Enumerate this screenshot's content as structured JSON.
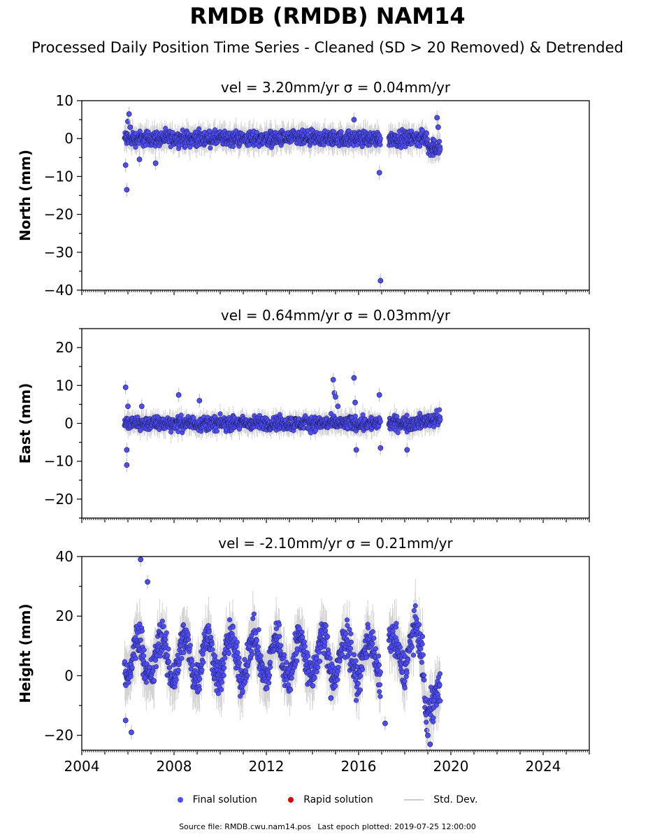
{
  "title": "RMDB (RMDB) NAM14",
  "subtitle": "Processed Daily Position Time Series - Cleaned (SD > 20 Removed) & Detrended",
  "colors": {
    "final": "#4d4dff",
    "rapid": "#e00000",
    "std": "#c8c8c8"
  },
  "chart_data": [
    {
      "type": "scatter",
      "title": "vel = 3.20mm/yr   σ = 0.04mm/yr",
      "xlabel": "",
      "ylabel": "North (mm)",
      "xlim": [
        2004,
        2026
      ],
      "ylim": [
        -40,
        10
      ],
      "yticks": [
        10,
        0,
        -10,
        -20,
        -30,
        -40
      ],
      "ytick_labels": [
        "10",
        "0",
        "−10",
        "−20",
        "−30",
        "−40"
      ],
      "series": [
        {
          "name": "Final solution",
          "x": [
            2005.9,
            2005.95,
            2006.0,
            2006.05,
            2006.1,
            2006.5,
            2007.2,
            2016.9,
            2016.95,
            2015.8,
            2019.4,
            2019.45
          ],
          "y": [
            -7,
            -13.5,
            4.5,
            6.5,
            3,
            -5.5,
            -6.5,
            -9,
            -37.5,
            5,
            5.5,
            3
          ]
        }
      ],
      "grid": false
    },
    {
      "type": "scatter",
      "title": "vel = 0.64mm/yr   σ = 0.03mm/yr",
      "xlabel": "",
      "ylabel": "East (mm)",
      "xlim": [
        2004,
        2026
      ],
      "ylim": [
        -25,
        25
      ],
      "yticks": [
        20,
        10,
        0,
        -10,
        -20
      ],
      "ytick_labels": [
        "20",
        "10",
        "0",
        "−10",
        "−20"
      ],
      "series": [
        {
          "name": "Final solution",
          "x": [
            2005.9,
            2005.95,
            2005.95,
            2006.0,
            2006.6,
            2008.2,
            2009.1,
            2014.9,
            2014.95,
            2015.0,
            2015.1,
            2015.8,
            2015.85,
            2015.9,
            2016.9,
            2016.95,
            2018.1
          ],
          "y": [
            9.5,
            -7,
            -11,
            4.5,
            4.5,
            7.5,
            6,
            11.5,
            8,
            7,
            4.5,
            12,
            5.5,
            -7,
            7.5,
            -6.5,
            -7
          ]
        }
      ],
      "grid": false
    },
    {
      "type": "scatter",
      "title": "vel = -2.10mm/yr   σ = 0.21mm/yr",
      "xlabel": "",
      "ylabel": "Height (mm)",
      "xlim": [
        2004,
        2026
      ],
      "ylim": [
        -25,
        40
      ],
      "yticks": [
        40,
        20,
        0,
        -20
      ],
      "ytick_labels": [
        "40",
        "20",
        "0",
        "−20"
      ],
      "xticks": [
        2004,
        2008,
        2012,
        2016,
        2020,
        2024
      ],
      "xtick_labels": [
        "2004",
        "2008",
        "2012",
        "2016",
        "2020",
        "2024"
      ],
      "series": [
        {
          "name": "Final solution",
          "x": [
            2006.55,
            2006.85,
            2006.15,
            2005.9,
            2017.15,
            2019.0,
            2019.1,
            2014.8
          ],
          "y": [
            39,
            31.5,
            -19,
            -15,
            -16,
            -20,
            -23,
            -7.5
          ]
        }
      ],
      "grid": false
    }
  ],
  "legend": {
    "final": "Final solution",
    "rapid": "Rapid solution",
    "std": "Std. Dev."
  },
  "footer": {
    "source": "Source file: RMDB.cwu.nam14.pos",
    "last_epoch": "Last epoch plotted: 2019-07-25 12:00:00"
  }
}
